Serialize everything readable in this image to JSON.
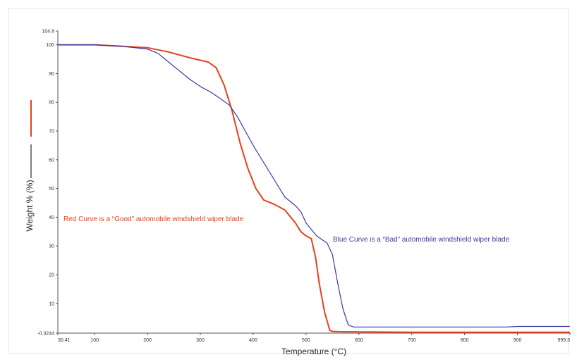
{
  "chart_data": {
    "type": "line",
    "xlabel": "Temperature (°C)",
    "ylabel": "Weight % (%)",
    "xlim": [
      30.41,
      999.3
    ],
    "ylim": [
      -0.3244,
      104.8
    ],
    "x_tick_labels": [
      "30.41",
      "100",
      "200",
      "300",
      "400",
      "500",
      "600",
      "700",
      "800",
      "900",
      "999.3"
    ],
    "x_tick_values": [
      30.41,
      100,
      200,
      300,
      400,
      500,
      600,
      700,
      800,
      900,
      999.3
    ],
    "y_tick_labels": [
      "-0.3244",
      "10",
      "20",
      "30",
      "40",
      "50",
      "60",
      "70",
      "80",
      "90",
      "100",
      "104.8"
    ],
    "y_tick_values": [
      -0.3244,
      10,
      20,
      30,
      40,
      50,
      60,
      70,
      80,
      90,
      100,
      104.8
    ],
    "grid": false,
    "legend": {
      "placement": "left, along y-axis",
      "colors": [
        "#e8401c",
        "#2b2b2b"
      ]
    },
    "series": [
      {
        "color": "#e8401c",
        "x": [
          30,
          100,
          150,
          200,
          240,
          280,
          315,
          330,
          345,
          360,
          375,
          390,
          405,
          420,
          440,
          460,
          480,
          490,
          500,
          510,
          518,
          525,
          535,
          545,
          550,
          560,
          600,
          700,
          800,
          900,
          999
        ],
        "y": [
          100,
          100,
          99.5,
          99,
          97.5,
          95.5,
          94,
          92,
          86,
          77,
          66,
          57,
          50,
          46,
          44.5,
          42.5,
          38,
          35,
          33.5,
          32.5,
          26,
          17,
          7,
          0.6,
          0.3,
          0.2,
          0.1,
          0,
          0,
          0,
          0
        ]
      },
      {
        "color": "#3a3aa8",
        "x": [
          30,
          100,
          150,
          200,
          220,
          240,
          260,
          280,
          300,
          320,
          340,
          355,
          370,
          385,
          400,
          420,
          440,
          460,
          480,
          490,
          500,
          520,
          540,
          550,
          560,
          570,
          580,
          590,
          600,
          700,
          800,
          880,
          900,
          999
        ],
        "y": [
          100,
          100,
          99.5,
          98.5,
          97,
          94,
          91,
          88,
          85.5,
          83.5,
          81,
          79,
          75,
          70,
          65,
          59,
          53,
          47,
          44,
          42,
          38,
          33.5,
          31,
          27,
          17,
          8,
          2.5,
          1.8,
          1.8,
          1.8,
          1.8,
          1.8,
          2,
          2
        ]
      }
    ],
    "annotations": [
      {
        "text": "Red Curve is a “Good” automobile windshield wiper blade",
        "color": "#e8401c"
      },
      {
        "text": "Blue Curve is a “Bad” automobile windshield wiper blade",
        "color": "#3a3aa8"
      }
    ]
  }
}
